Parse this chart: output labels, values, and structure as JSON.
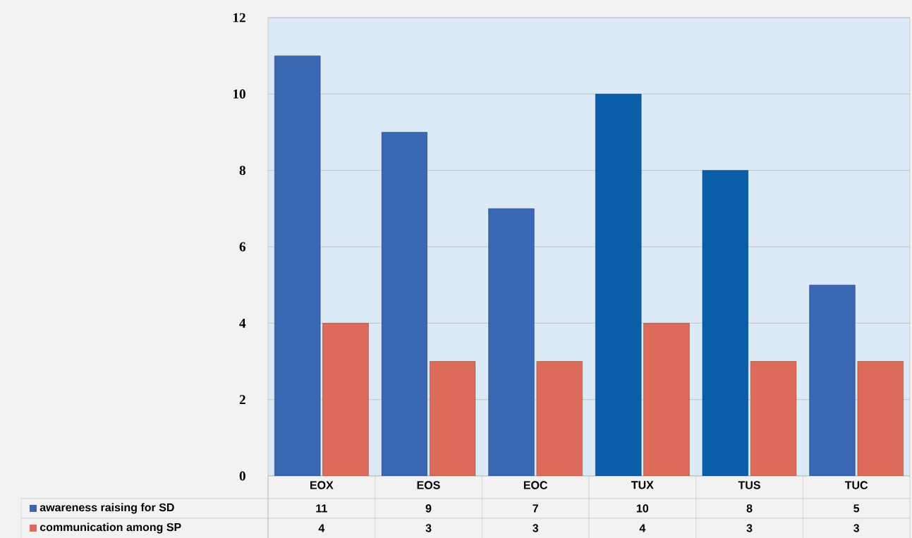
{
  "chart_data": {
    "type": "bar",
    "categories": [
      "EOX",
      "EOS",
      "EOC",
      "TUX",
      "TUS",
      "TUC"
    ],
    "series": [
      {
        "name": "awareness raising for SD",
        "color": "#3a67b4",
        "colors": [
          "#3a67b4",
          "#3a67b4",
          "#3a67b4",
          "#0b5fa8",
          "#0b5fa8",
          "#3a67b4"
        ],
        "values": [
          11,
          9,
          7,
          10,
          8,
          5
        ]
      },
      {
        "name": "communication among SP",
        "color": "#dc6b59",
        "values": [
          4,
          3,
          3,
          4,
          3,
          3
        ]
      }
    ],
    "ylim": [
      0,
      12
    ],
    "yticks": [
      0,
      2,
      4,
      6,
      8,
      10,
      12
    ],
    "grid": "y",
    "legend": "bottom",
    "data_labels": true
  }
}
